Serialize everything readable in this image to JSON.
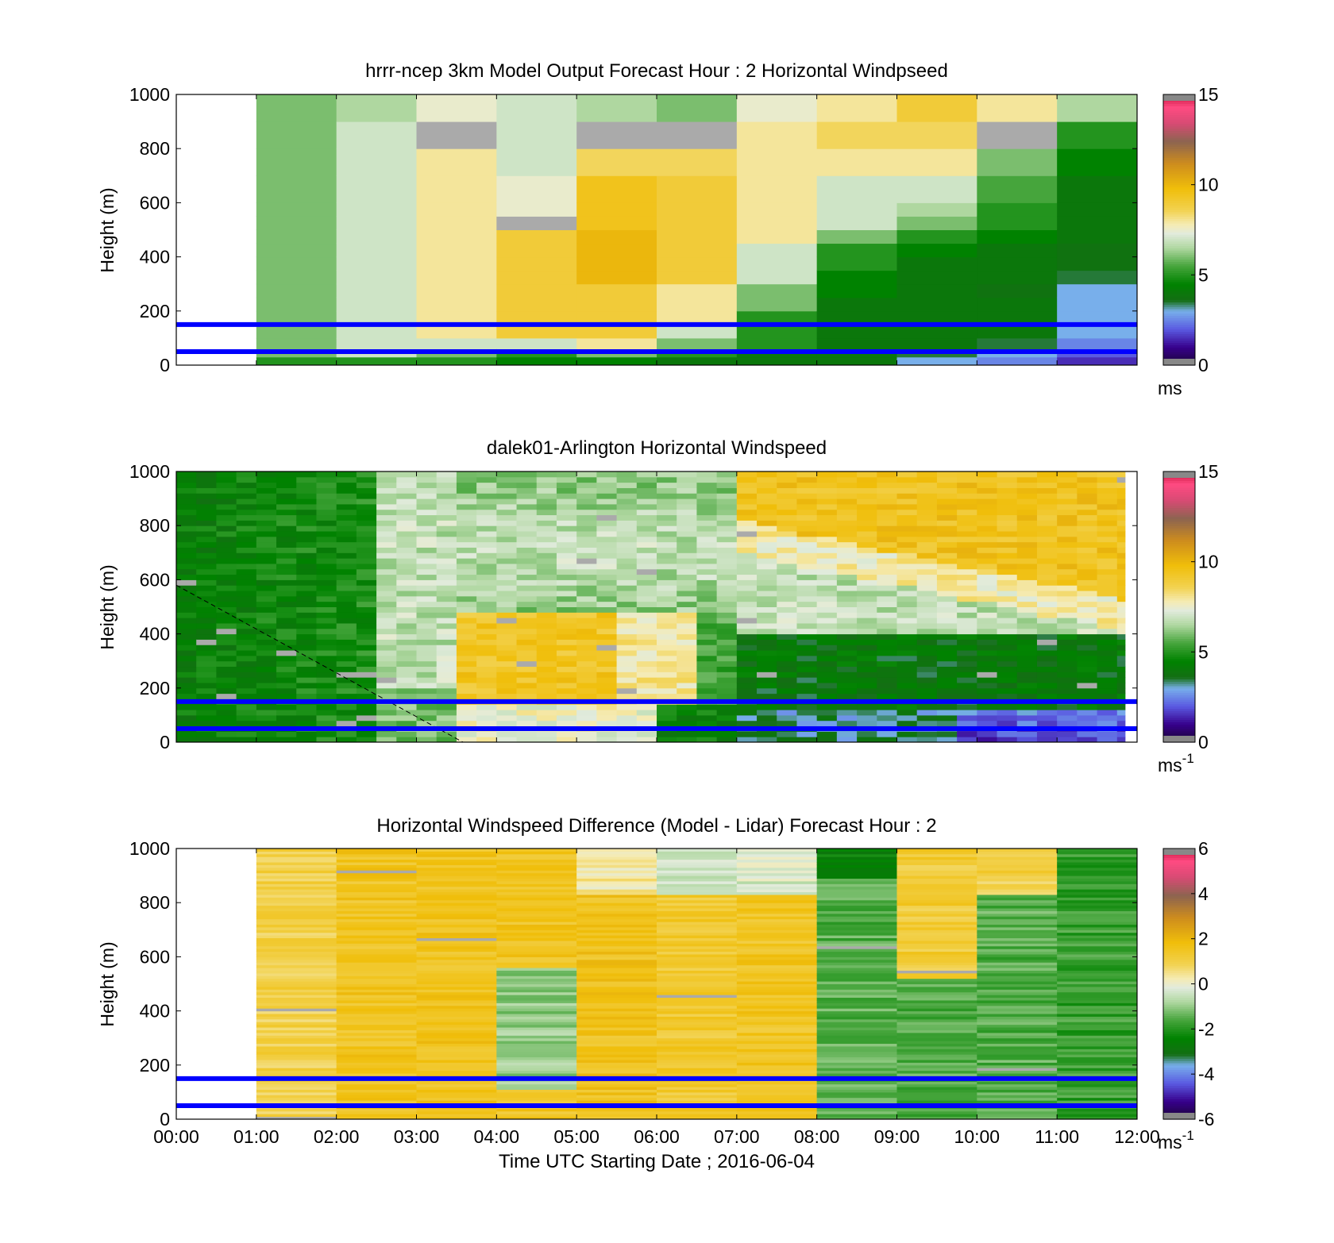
{
  "chart_data": [
    {
      "type": "heatmap",
      "title": "hrrr-ncep 3km Model Output   Forecast Hour : 2 Horizontal Windpseed",
      "ylabel": "Height (m)",
      "xlabel": "",
      "x_ticks": [
        "00:00",
        "01:00",
        "02:00",
        "03:00",
        "04:00",
        "05:00",
        "06:00",
        "07:00",
        "08:00",
        "09:00",
        "10:00",
        "11:00",
        "12:00"
      ],
      "x_tick_labels_shown": false,
      "y_ticks": [
        0,
        200,
        400,
        600,
        800,
        1000
      ],
      "ylim": [
        0,
        1000
      ],
      "xlim_hours": [
        0,
        12
      ],
      "colorbar": {
        "min": 0,
        "max": 15,
        "ticks": [
          0,
          5,
          10,
          15
        ],
        "unit_label": "ms",
        "unit_sup": ""
      },
      "reference_lines_m": [
        50,
        150
      ],
      "rows_bottom_m": [
        0,
        30,
        60,
        100,
        150,
        200,
        250,
        300,
        350,
        400,
        450,
        500,
        550,
        600,
        700,
        800,
        900
      ],
      "columns": [
        {
          "start_hour": 1,
          "values": [
            5,
            6,
            6,
            6,
            6,
            6,
            6,
            6,
            6,
            6,
            6,
            6,
            6,
            6,
            6,
            6,
            6
          ]
        },
        {
          "start_hour": 2,
          "values": [
            5,
            7,
            7,
            7,
            7,
            7,
            7,
            7,
            7,
            7,
            7,
            7,
            7,
            7,
            7,
            7,
            6.5
          ]
        },
        {
          "start_hour": 3,
          "values": [
            5,
            6,
            7,
            8,
            8,
            8,
            8,
            8,
            8,
            8,
            8,
            8,
            8,
            8,
            8,
            "nan",
            7.5
          ]
        },
        {
          "start_hour": 4,
          "values": [
            4.5,
            5,
            7,
            9,
            9,
            9,
            9,
            9,
            9,
            9,
            9,
            "nan",
            7.5,
            7.5,
            7,
            7,
            7
          ]
        },
        {
          "start_hour": 5,
          "values": [
            4.5,
            6,
            8,
            9,
            9,
            9,
            9,
            10,
            10,
            10,
            10,
            9.5,
            9.5,
            9.5,
            8.5,
            "nan",
            6.5
          ]
        },
        {
          "start_hour": 6,
          "values": [
            4,
            5,
            6,
            7,
            8,
            8,
            8,
            9,
            9,
            9,
            9,
            9,
            9,
            9,
            8.5,
            "nan",
            6
          ]
        },
        {
          "start_hour": 7,
          "values": [
            4,
            4,
            5,
            5,
            5,
            6,
            6,
            7,
            7,
            7,
            8,
            8,
            8,
            8,
            8,
            8,
            7.5
          ]
        },
        {
          "start_hour": 8,
          "values": [
            4,
            4,
            4,
            4,
            4,
            4,
            4.5,
            4.5,
            5,
            5,
            6,
            7,
            7,
            7,
            8,
            8.5,
            8
          ]
        },
        {
          "start_hour": 9,
          "values": [
            3,
            3.5,
            4,
            4,
            4,
            4,
            4,
            4,
            4,
            4.5,
            5,
            6,
            6.5,
            7,
            8,
            8.5,
            9
          ]
        },
        {
          "start_hour": 10,
          "values": [
            2.5,
            3,
            3.5,
            4,
            4,
            4,
            3.8,
            4,
            4,
            4,
            4.5,
            5,
            5,
            5.5,
            6,
            "nan",
            8
          ]
        },
        {
          "start_hour": 11,
          "values": [
            1.5,
            2,
            2.5,
            3,
            3,
            3,
            3,
            3.5,
            3.8,
            3.8,
            4,
            4,
            4,
            4,
            4.5,
            5,
            6.5
          ]
        }
      ]
    },
    {
      "type": "heatmap",
      "title": "dalek01-Arlington  Horizontal Windspeed",
      "ylabel": "Height (m)",
      "xlabel": "",
      "x_ticks": [
        "00:00",
        "01:00",
        "02:00",
        "03:00",
        "04:00",
        "05:00",
        "06:00",
        "07:00",
        "08:00",
        "09:00",
        "10:00",
        "11:00",
        "12:00"
      ],
      "x_tick_labels_shown": false,
      "y_ticks": [
        0,
        200,
        400,
        600,
        800,
        1000
      ],
      "ylim": [
        0,
        1000
      ],
      "xlim_hours": [
        0,
        12
      ],
      "colorbar": {
        "min": 0,
        "max": 15,
        "ticks": [
          0,
          5,
          10,
          15
        ],
        "unit_label": "ms",
        "unit_sup": "-1"
      },
      "reference_lines_m": [
        50,
        150
      ],
      "lidar_time_range_hours": [
        0,
        11.85
      ],
      "lidar_column_width_hours": 0.25,
      "regime_description_values_ms": {
        "00:00-02:30 all heights": 4.5,
        "02:30-03:30": 6,
        "03:30-05:30 below 480 m": 9,
        "05:30-07:00 upper": 7,
        "07:00-09:00 above 700 m": 9.5,
        "08:00-12:00 below 400 m": 4,
        "10:00-12:00 below 100 m": 1.5
      },
      "annotation": "dashed line from (00:00, 580 m) to (03:35, 0 m)"
    },
    {
      "type": "heatmap",
      "title": "Horizontal Windspeed Difference (Model - Lidar) Forecast Hour : 2",
      "ylabel": "Height (m)",
      "xlabel": "Time UTC  Starting Date ; 2016-06-04",
      "x_ticks": [
        "00:00",
        "01:00",
        "02:00",
        "03:00",
        "04:00",
        "05:00",
        "06:00",
        "07:00",
        "08:00",
        "09:00",
        "10:00",
        "11:00",
        "12:00"
      ],
      "x_tick_labels_shown": true,
      "y_ticks": [
        0,
        200,
        400,
        600,
        800,
        1000
      ],
      "ylim": [
        0,
        1000
      ],
      "xlim_hours": [
        0,
        12
      ],
      "colorbar": {
        "min": -6,
        "max": 6,
        "ticks": [
          -6,
          -4,
          -2,
          0,
          2,
          4,
          6
        ],
        "unit_label": "ms",
        "unit_sup": "-1"
      },
      "reference_lines_m": [
        50,
        150
      ],
      "columns": [
        {
          "start_hour": 1,
          "mean_difference_ms": 1.0
        },
        {
          "start_hour": 2,
          "mean_difference_ms": 1.5
        },
        {
          "start_hour": 3,
          "mean_difference_ms": 1.6
        },
        {
          "start_hour": 4,
          "mean_difference_ms": 1.5,
          "middle_layer_difference_ms": -1.0
        },
        {
          "start_hour": 5,
          "mean_difference_ms": 1.6,
          "upper_difference_ms": 0.3
        },
        {
          "start_hour": 6,
          "mean_difference_ms": 1.3,
          "upper_difference_ms": -0.5
        },
        {
          "start_hour": 7,
          "mean_difference_ms": 1.5,
          "upper_difference_ms": -0.3
        },
        {
          "start_hour": 8,
          "mean_difference_ms": -1.5,
          "top_difference_ms": -2.5
        },
        {
          "start_hour": 9,
          "mean_difference_ms": 1.2,
          "lower_difference_ms": -1.5
        },
        {
          "start_hour": 10,
          "mean_difference_ms": -1.5,
          "upper_difference_ms": 1.0
        },
        {
          "start_hour": 11,
          "mean_difference_ms": -1.8
        }
      ]
    }
  ]
}
